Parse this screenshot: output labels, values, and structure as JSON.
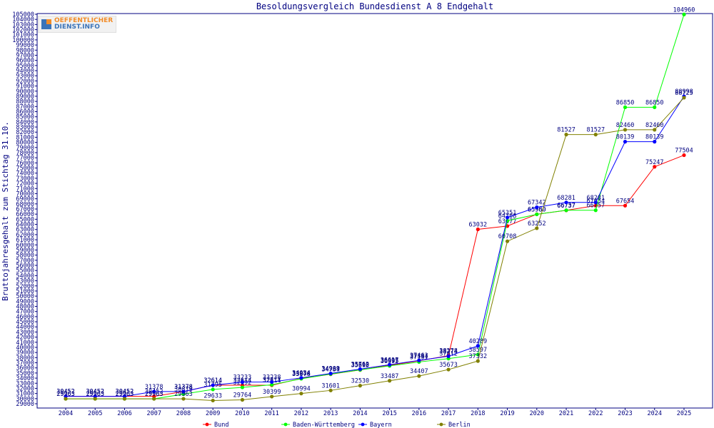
{
  "logo": {
    "line1": "OEFFENTLICHER",
    "line2": "DIENST.INFO",
    "colors": [
      "#f28c28",
      "#3a73b8"
    ]
  },
  "chart_data": {
    "type": "line",
    "title": "Besoldungsvergleich Bundesdienst A 8 Endgehalt",
    "xlabel": "",
    "ylabel": "Bruttojahresgehalt zum Stichtag 31.10.",
    "ylim": [
      29000,
      105000
    ],
    "ytick_step": 1000,
    "grid": false,
    "legend_position": "bottom",
    "categories": [
      "2004",
      "2005",
      "2006",
      "2007",
      "2008",
      "2009",
      "2010",
      "2011",
      "2012",
      "2013",
      "2014",
      "2015",
      "2016",
      "2017",
      "2018",
      "2019",
      "2020",
      "2021",
      "2022",
      "2023",
      "2024",
      "2025"
    ],
    "series": [
      {
        "name": "Bund",
        "color": "#ff0000",
        "values": [
          30452,
          30452,
          30452,
          30452,
          31378,
          32614,
          32614,
          32614,
          33944,
          34754,
          35595,
          36493,
          37384,
          38378,
          63032,
          63677,
          65980,
          66737,
          67654,
          67654,
          75247,
          77504
        ]
      },
      {
        "name": "Baden-Württemberg",
        "color": "#00ff00",
        "values": [
          29963,
          29963,
          29963,
          29963,
          30879,
          31795,
          32192,
          32711,
          33878,
          34787,
          35610,
          36395,
          37151,
          37812,
          38597,
          64708,
          65960,
          66757,
          66757,
          86850,
          86850,
          104960
        ]
      },
      {
        "name": "Bayern",
        "color": "#0000ff",
        "values": [
          30452,
          30452,
          30452,
          31378,
          31378,
          32614,
          33233,
          33238,
          34054,
          34909,
          35762,
          36617,
          37463,
          38274,
          40289,
          65351,
          67342,
          68281,
          68281,
          80139,
          80139,
          88998
        ]
      },
      {
        "name": "Berlin",
        "color": "#808000",
        "values": [
          29963,
          29963,
          29963,
          29963,
          29963,
          29633,
          29764,
          30399,
          30994,
          31601,
          32530,
          33487,
          34407,
          35673,
          37332,
          60708,
          63252,
          81527,
          81527,
          82460,
          82460,
          88725
        ]
      }
    ]
  }
}
